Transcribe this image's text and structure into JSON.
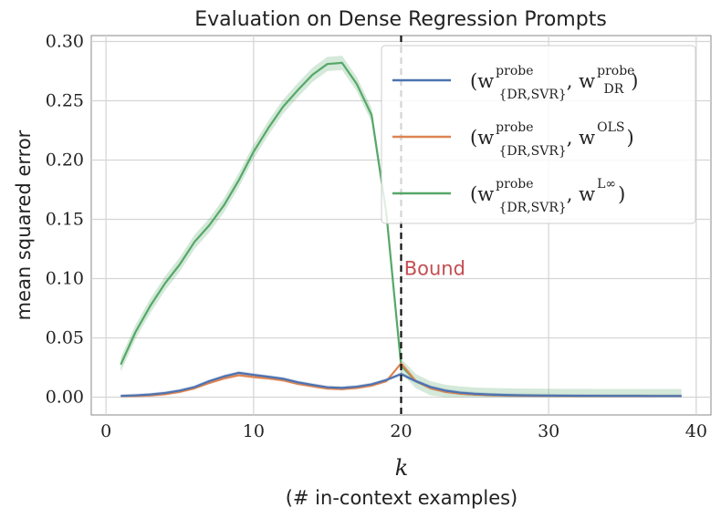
{
  "chart_data": {
    "type": "line",
    "title": "Evaluation on Dense Regression Prompts",
    "xlabel": "k",
    "xlabel_sub": "(# in-context examples)",
    "ylabel": "mean squared error",
    "xlim": [
      -1,
      41
    ],
    "ylim": [
      -0.015,
      0.305
    ],
    "xticks": [
      0,
      10,
      20,
      30,
      40
    ],
    "xtick_labels": [
      "0",
      "10",
      "20",
      "30",
      "40"
    ],
    "yticks": [
      0.0,
      0.05,
      0.1,
      0.15,
      0.2,
      0.25,
      0.3
    ],
    "ytick_labels": [
      "0.00",
      "0.05",
      "0.10",
      "0.15",
      "0.20",
      "0.25",
      "0.30"
    ],
    "grid": true,
    "legend_position": "top-right",
    "x": [
      1,
      2,
      3,
      4,
      5,
      6,
      7,
      8,
      9,
      10,
      11,
      12,
      13,
      14,
      15,
      16,
      17,
      18,
      19,
      20,
      21,
      22,
      23,
      24,
      25,
      26,
      27,
      28,
      29,
      30,
      31,
      32,
      33,
      34,
      35,
      36,
      37,
      38,
      39
    ],
    "series": [
      {
        "name": "(w^probe_{DR,SVR}, w^probe_DR)",
        "legend_main": "(w",
        "legend_sup1": "probe",
        "legend_sub1": "{DR,SVR}",
        "legend_mid": ", w",
        "legend_sup2": "probe",
        "legend_sub2": "DR",
        "legend_end": ")",
        "color": "#4c72b0",
        "values": [
          0.001,
          0.0015,
          0.0022,
          0.0035,
          0.0055,
          0.0085,
          0.0135,
          0.0175,
          0.0205,
          0.0188,
          0.0172,
          0.0155,
          0.0125,
          0.0103,
          0.0083,
          0.0078,
          0.0088,
          0.0108,
          0.0145,
          0.0195,
          0.0135,
          0.0085,
          0.0055,
          0.0038,
          0.0028,
          0.0022,
          0.0018,
          0.0016,
          0.0014,
          0.0013,
          0.0012,
          0.0011,
          0.0011,
          0.001,
          0.001,
          0.001,
          0.0009,
          0.0009,
          0.0009
        ],
        "band": 0.0015
      },
      {
        "name": "(w^probe_{DR,SVR}, w^OLS)",
        "legend_main": "(w",
        "legend_sup1": "probe",
        "legend_sub1": "{DR,SVR}",
        "legend_mid": ", w",
        "legend_sup2": "OLS",
        "legend_sub2": "",
        "legend_end": ")",
        "color": "#dd8452",
        "values": [
          0.0008,
          0.001,
          0.0015,
          0.0025,
          0.0045,
          0.0075,
          0.012,
          0.0158,
          0.0185,
          0.017,
          0.0158,
          0.0142,
          0.0112,
          0.0092,
          0.0073,
          0.0068,
          0.0078,
          0.0098,
          0.0135,
          0.0285,
          0.0135,
          0.0075,
          0.0045,
          0.003,
          0.0022,
          0.0018,
          0.0015,
          0.0013,
          0.0012,
          0.0011,
          0.001,
          0.001,
          0.0009,
          0.0009,
          0.0009,
          0.0009,
          0.0008,
          0.0008,
          0.0008
        ],
        "band": 0.0012
      },
      {
        "name": "(w^probe_{DR,SVR}, w^{L∞})",
        "legend_main": "(w",
        "legend_sup1": "probe",
        "legend_sub1": "{DR,SVR}",
        "legend_mid": ", w",
        "legend_sup2": "L∞",
        "legend_sub2": "",
        "legend_end": ")",
        "color": "#55a868",
        "values": [
          0.0275,
          0.055,
          0.077,
          0.096,
          0.112,
          0.131,
          0.145,
          0.162,
          0.183,
          0.207,
          0.227,
          0.245,
          0.259,
          0.272,
          0.281,
          0.282,
          0.264,
          0.238,
          0.155,
          0.0265,
          0.0135,
          0.0075,
          0.0045,
          0.003,
          0.0022,
          0.0018,
          0.0015,
          0.0013,
          0.0012,
          0.0011,
          0.001,
          0.001,
          0.0009,
          0.0009,
          0.0009,
          0.0009,
          0.0008,
          0.0008,
          0.0008
        ],
        "band": 0.006
      }
    ],
    "vline": {
      "x": 20,
      "color": "#111111"
    },
    "annotation": {
      "text": "Bound",
      "x": 20.2,
      "y": 0.103,
      "color": "#c44e52"
    }
  }
}
